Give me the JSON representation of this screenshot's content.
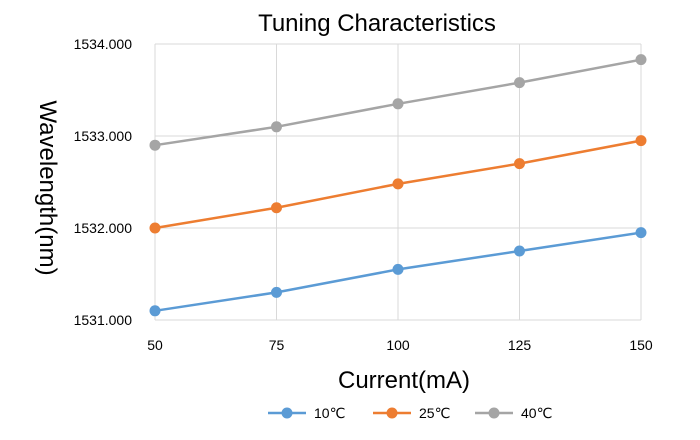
{
  "chart_data": {
    "type": "line",
    "title": "Tuning Characteristics",
    "xlabel": "Current(mA)",
    "ylabel": "Wavelength(nm)",
    "x": [
      50,
      75,
      100,
      125,
      150
    ],
    "x_tick_labels": [
      "50",
      "75",
      "100",
      "125",
      "150"
    ],
    "xlim": [
      50,
      150
    ],
    "ylim": [
      1531.0,
      1534.0
    ],
    "y_ticks": [
      1531.0,
      1532.0,
      1533.0,
      1534.0
    ],
    "y_tick_labels": [
      "1531.000",
      "1532.000",
      "1533.000",
      "1534.000"
    ],
    "grid": true,
    "legend_position": "bottom",
    "series": [
      {
        "name": "10℃",
        "color": "#5b9bd5",
        "values": [
          1531.1,
          1531.3,
          1531.55,
          1531.75,
          1531.95
        ]
      },
      {
        "name": "25℃",
        "color": "#ed7d31",
        "values": [
          1532.0,
          1532.22,
          1532.48,
          1532.7,
          1532.95
        ]
      },
      {
        "name": "40℃",
        "color": "#a5a5a5",
        "values": [
          1532.9,
          1533.1,
          1533.35,
          1533.58,
          1533.83
        ]
      }
    ]
  }
}
